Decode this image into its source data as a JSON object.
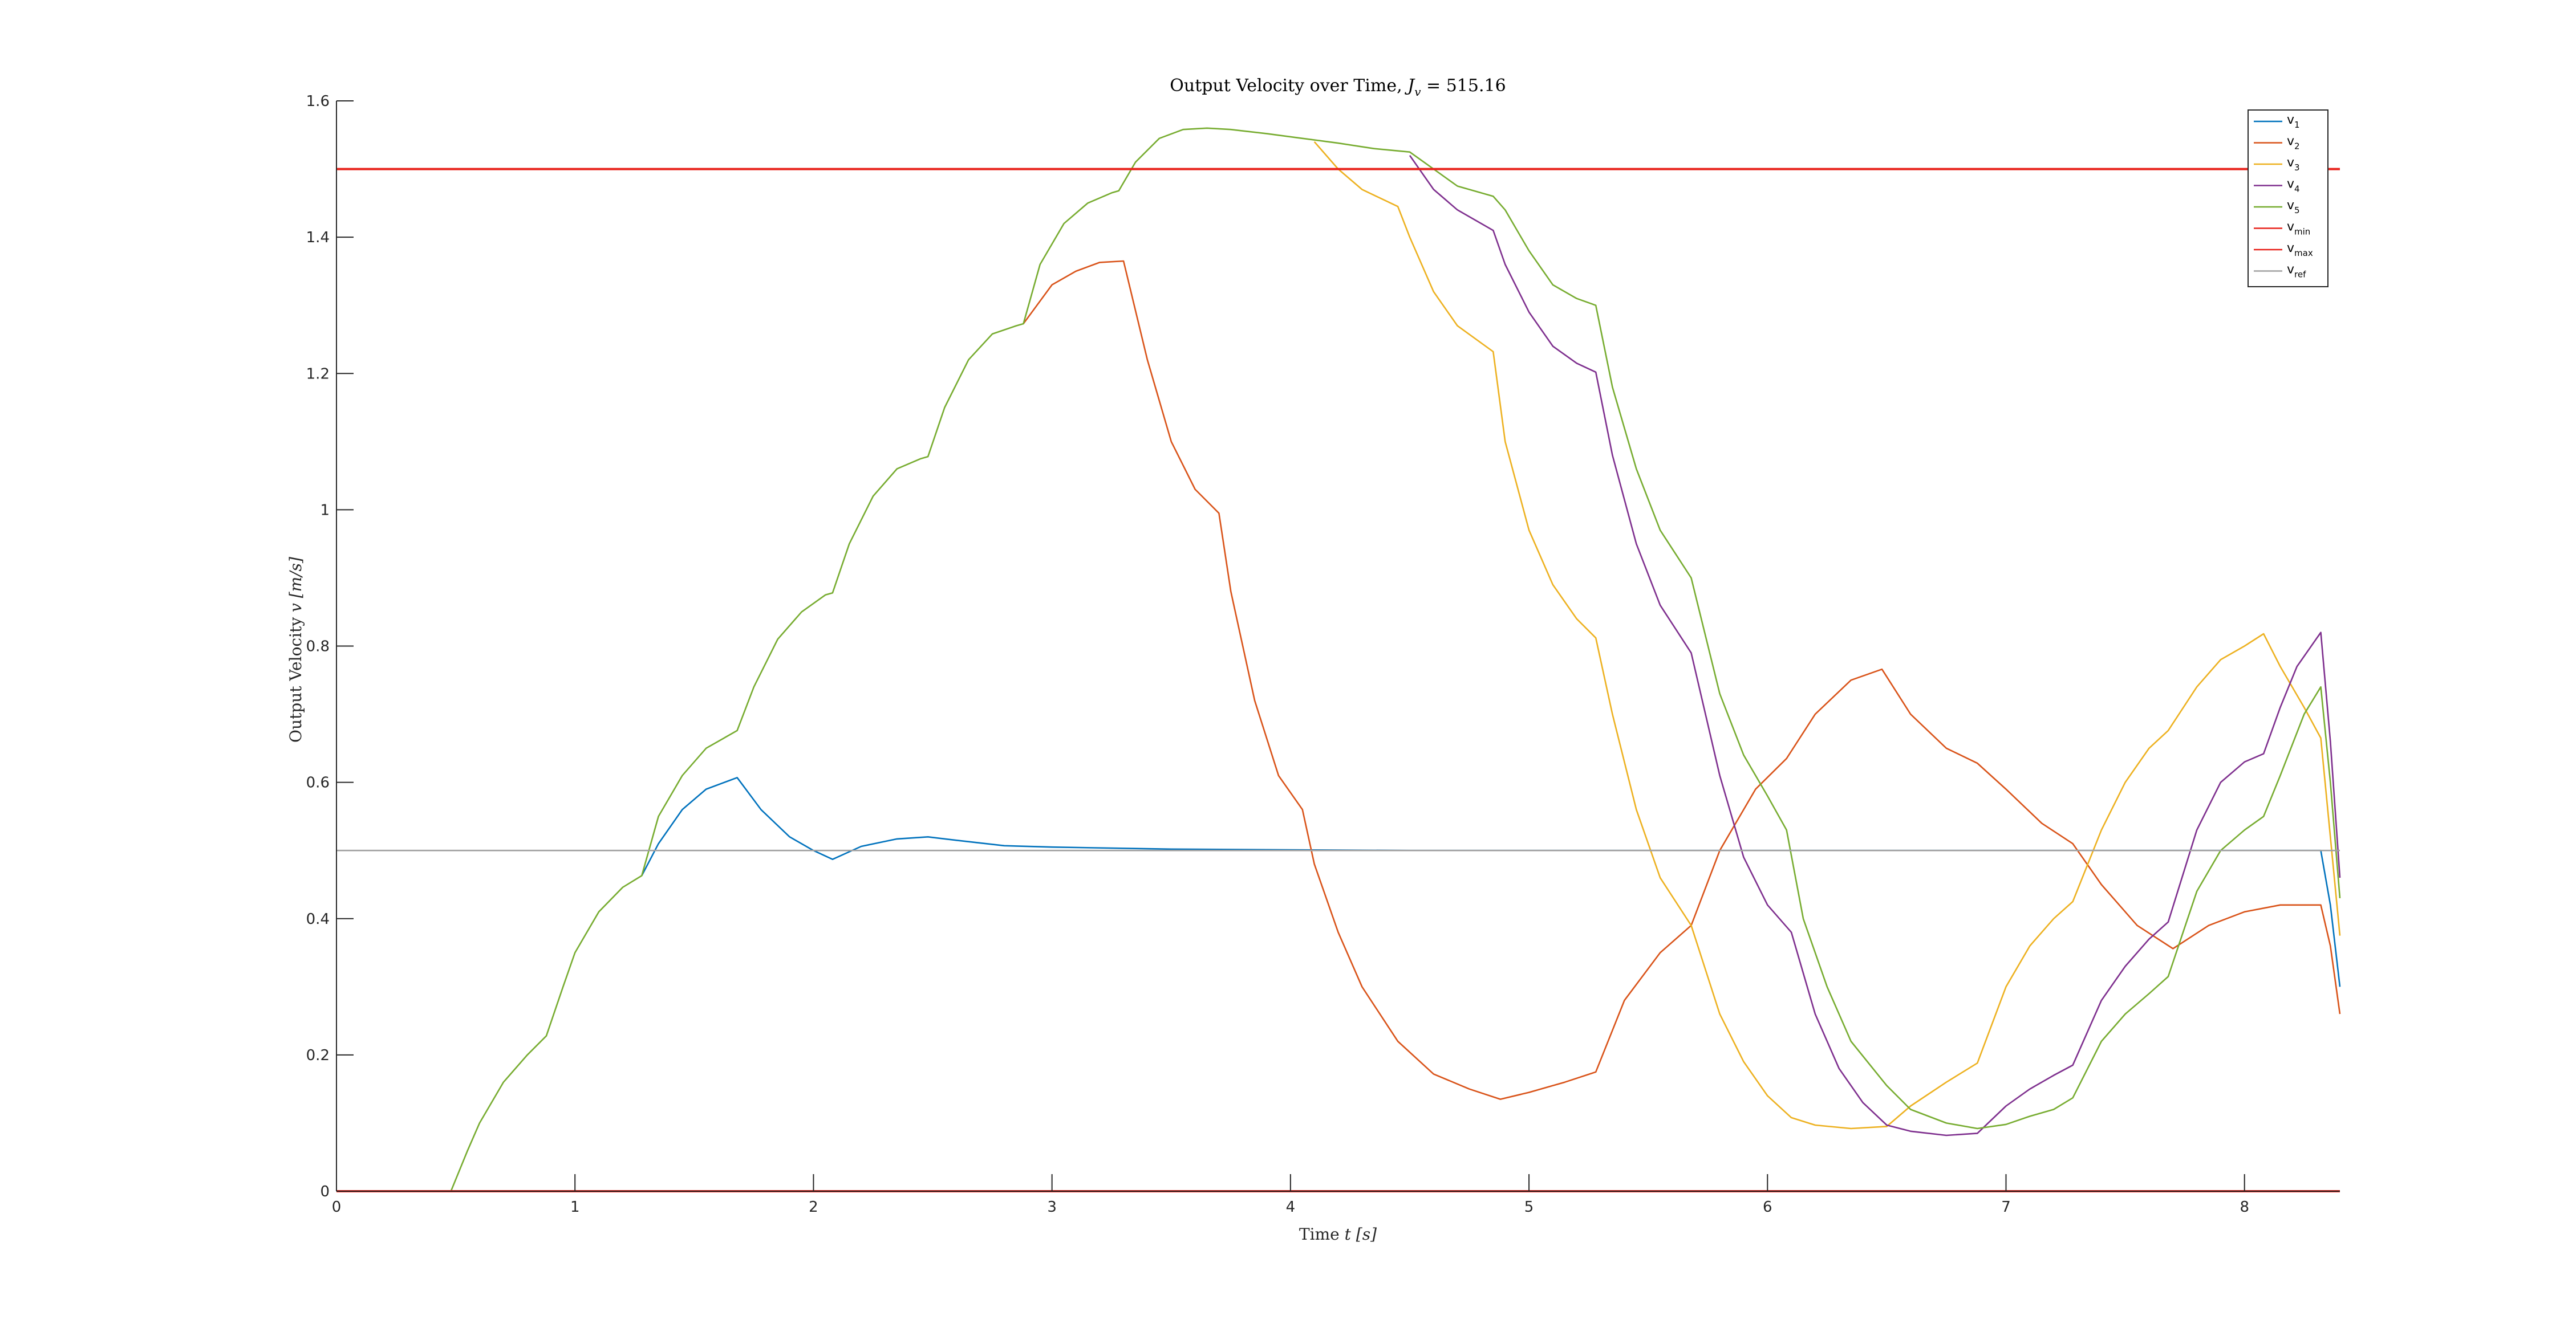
{
  "chart_data": {
    "type": "line",
    "title_prefix": "Output Velocity over Time, ",
    "title_math_symbol": "J",
    "title_math_sub": "v",
    "title_math_rest": " = 515.16",
    "xlabel_prefix": "Time ",
    "xlabel_math": "t [s]",
    "ylabel_prefix": "Output Velocity ",
    "ylabel_math": "v [m/s]",
    "xlim": [
      0,
      8.4
    ],
    "ylim": [
      0,
      1.6
    ],
    "xticks": [
      "0",
      "1",
      "2",
      "3",
      "4",
      "5",
      "6",
      "7",
      "8"
    ],
    "yticks": [
      "0",
      "0.2",
      "0.4",
      "0.6",
      "0.8",
      "1",
      "1.2",
      "1.4",
      "1.6"
    ],
    "grid": false,
    "legend_position": "top-right",
    "series": [
      {
        "label_main": "v",
        "label_sub": "1",
        "color": "#0072BD",
        "x": [
          1.28,
          1.35,
          1.45,
          1.55,
          1.65,
          1.68,
          1.78,
          1.9,
          2.0,
          2.08,
          2.2,
          2.35,
          2.48,
          2.6,
          2.8,
          3.0,
          3.5,
          4.0,
          4.5,
          5.0,
          6.0,
          7.0,
          8.0,
          8.32,
          8.36,
          8.4
        ],
        "y": [
          0.463,
          0.51,
          0.56,
          0.59,
          0.603,
          0.607,
          0.56,
          0.52,
          0.5,
          0.487,
          0.506,
          0.517,
          0.52,
          0.515,
          0.507,
          0.505,
          0.502,
          0.501,
          0.5,
          0.5,
          0.5,
          0.5,
          0.5,
          0.5,
          0.42,
          0.3
        ]
      },
      {
        "label_main": "v",
        "label_sub": "2",
        "color": "#D95319",
        "x": [
          2.88,
          3.0,
          3.1,
          3.2,
          3.3,
          3.4,
          3.5,
          3.6,
          3.7,
          3.75,
          3.85,
          3.95,
          4.05,
          4.1,
          4.2,
          4.3,
          4.45,
          4.6,
          4.75,
          4.88,
          5.0,
          5.15,
          5.28,
          5.4,
          5.55,
          5.68,
          5.8,
          5.95,
          6.08,
          6.2,
          6.35,
          6.48,
          6.6,
          6.75,
          6.88,
          7.0,
          7.15,
          7.28,
          7.4,
          7.55,
          7.7,
          7.85,
          8.0,
          8.15,
          8.32,
          8.36,
          8.4
        ],
        "y": [
          1.273,
          1.33,
          1.35,
          1.363,
          1.365,
          1.22,
          1.1,
          1.03,
          0.995,
          0.88,
          0.72,
          0.61,
          0.56,
          0.48,
          0.38,
          0.3,
          0.22,
          0.172,
          0.15,
          0.135,
          0.145,
          0.16,
          0.175,
          0.28,
          0.35,
          0.39,
          0.5,
          0.59,
          0.635,
          0.7,
          0.75,
          0.766,
          0.7,
          0.65,
          0.628,
          0.59,
          0.54,
          0.51,
          0.45,
          0.39,
          0.356,
          0.39,
          0.41,
          0.42,
          0.42,
          0.36,
          0.26
        ]
      },
      {
        "label_main": "v",
        "label_sub": "3",
        "color": "#EDB120",
        "x": [
          4.1,
          4.2,
          4.3,
          4.45,
          4.5,
          4.6,
          4.7,
          4.85,
          4.9,
          5.0,
          5.1,
          5.2,
          5.28,
          5.35,
          5.45,
          5.55,
          5.68,
          5.8,
          5.9,
          6.0,
          6.1,
          6.2,
          6.35,
          6.5,
          6.6,
          6.75,
          6.88,
          7.0,
          7.1,
          7.2,
          7.28,
          7.4,
          7.5,
          7.6,
          7.68,
          7.8,
          7.9,
          8.0,
          8.08,
          8.15,
          8.25,
          8.32,
          8.36,
          8.4
        ],
        "y": [
          1.54,
          1.5,
          1.47,
          1.445,
          1.4,
          1.32,
          1.27,
          1.232,
          1.1,
          0.97,
          0.89,
          0.84,
          0.812,
          0.7,
          0.56,
          0.46,
          0.39,
          0.26,
          0.19,
          0.14,
          0.108,
          0.097,
          0.092,
          0.095,
          0.125,
          0.16,
          0.188,
          0.3,
          0.36,
          0.4,
          0.425,
          0.53,
          0.6,
          0.65,
          0.676,
          0.74,
          0.78,
          0.8,
          0.818,
          0.77,
          0.71,
          0.665,
          0.52,
          0.375
        ]
      },
      {
        "label_main": "v",
        "label_sub": "4",
        "color": "#7E2F8E",
        "x": [
          4.5,
          4.6,
          4.7,
          4.85,
          4.9,
          5.0,
          5.1,
          5.2,
          5.28,
          5.35,
          5.45,
          5.55,
          5.68,
          5.8,
          5.9,
          6.0,
          6.1,
          6.2,
          6.3,
          6.4,
          6.5,
          6.6,
          6.75,
          6.88,
          7.0,
          7.1,
          7.2,
          7.28,
          7.4,
          7.5,
          7.6,
          7.68,
          7.8,
          7.9,
          8.0,
          8.08,
          8.15,
          8.22,
          8.32,
          8.36,
          8.4
        ],
        "y": [
          1.52,
          1.47,
          1.44,
          1.41,
          1.36,
          1.29,
          1.24,
          1.215,
          1.202,
          1.08,
          0.95,
          0.86,
          0.79,
          0.61,
          0.49,
          0.42,
          0.38,
          0.26,
          0.18,
          0.13,
          0.097,
          0.088,
          0.082,
          0.085,
          0.125,
          0.15,
          0.17,
          0.185,
          0.28,
          0.33,
          0.37,
          0.395,
          0.53,
          0.6,
          0.63,
          0.642,
          0.71,
          0.77,
          0.82,
          0.66,
          0.46
        ]
      },
      {
        "label_main": "v",
        "label_sub": "5",
        "color": "#77AC30",
        "x": [
          0.48,
          0.55,
          0.6,
          0.7,
          0.8,
          0.88,
          0.95,
          1.0,
          1.1,
          1.2,
          1.28,
          1.35,
          1.45,
          1.55,
          1.65,
          1.68,
          1.75,
          1.85,
          1.95,
          2.05,
          2.08,
          2.15,
          2.25,
          2.35,
          2.45,
          2.48,
          2.55,
          2.65,
          2.75,
          2.85,
          2.88,
          2.95,
          3.05,
          3.15,
          3.25,
          3.28,
          3.35,
          3.45,
          3.55,
          3.65,
          3.75,
          3.9,
          4.05,
          4.2,
          4.35,
          4.5,
          4.6,
          4.7,
          4.85,
          4.9,
          5.0,
          5.1,
          5.2,
          5.28,
          5.35,
          5.45,
          5.55,
          5.68,
          5.8,
          5.9,
          6.0,
          6.08,
          6.15,
          6.25,
          6.35,
          6.5,
          6.6,
          6.75,
          6.88,
          7.0,
          7.1,
          7.2,
          7.28,
          7.4,
          7.5,
          7.6,
          7.68,
          7.8,
          7.9,
          8.0,
          8.08,
          8.15,
          8.25,
          8.32,
          8.36,
          8.4
        ],
        "y": [
          0.0,
          0.06,
          0.1,
          0.16,
          0.2,
          0.228,
          0.3,
          0.35,
          0.41,
          0.446,
          0.463,
          0.55,
          0.61,
          0.65,
          0.67,
          0.676,
          0.74,
          0.81,
          0.85,
          0.875,
          0.878,
          0.95,
          1.02,
          1.06,
          1.075,
          1.078,
          1.15,
          1.22,
          1.258,
          1.27,
          1.273,
          1.36,
          1.42,
          1.45,
          1.465,
          1.468,
          1.51,
          1.545,
          1.558,
          1.56,
          1.558,
          1.552,
          1.545,
          1.538,
          1.53,
          1.525,
          1.5,
          1.475,
          1.46,
          1.44,
          1.38,
          1.33,
          1.31,
          1.3,
          1.18,
          1.06,
          0.97,
          0.9,
          0.73,
          0.64,
          0.58,
          0.53,
          0.4,
          0.3,
          0.22,
          0.155,
          0.12,
          0.1,
          0.092,
          0.098,
          0.11,
          0.12,
          0.137,
          0.22,
          0.26,
          0.29,
          0.315,
          0.44,
          0.5,
          0.53,
          0.55,
          0.61,
          0.7,
          0.74,
          0.6,
          0.43
        ]
      },
      {
        "label_main": "v",
        "label_sub": "min",
        "color": "#E8231C",
        "x": [
          0,
          8.4
        ],
        "y": [
          0,
          0
        ]
      },
      {
        "label_main": "v",
        "label_sub": "max",
        "color": "#E8231C",
        "x": [
          0,
          8.4
        ],
        "y": [
          1.5,
          1.5
        ]
      },
      {
        "label_main": "v",
        "label_sub": "ref",
        "color": "#A0A0A0",
        "x": [
          0,
          8.4
        ],
        "y": [
          0.5,
          0.5
        ]
      }
    ]
  }
}
